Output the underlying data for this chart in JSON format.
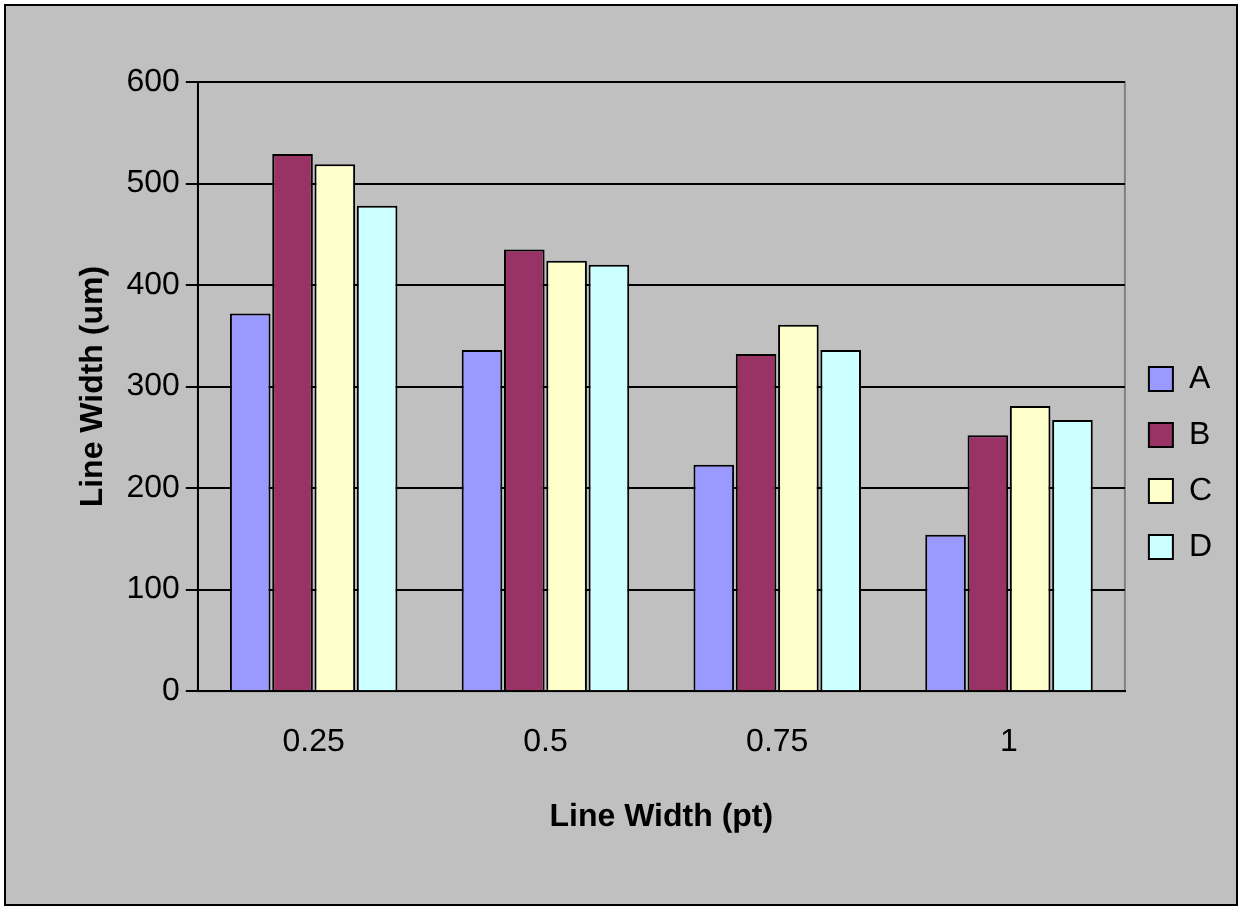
{
  "chart_data": {
    "type": "bar",
    "xlabel": "Line Width (pt)",
    "ylabel": "Line Width (um)",
    "categories": [
      "0.25",
      "0.5",
      "0.75",
      "1"
    ],
    "series": [
      {
        "name": "A",
        "color": "#9999ff",
        "values": [
          372,
          336,
          223,
          154
        ]
      },
      {
        "name": "B",
        "color": "#993366",
        "values": [
          529,
          435,
          332,
          252
        ]
      },
      {
        "name": "C",
        "color": "#ffffcc",
        "values": [
          519,
          424,
          361,
          281
        ]
      },
      {
        "name": "D",
        "color": "#ccffff",
        "values": [
          478,
          420,
          336,
          267
        ]
      }
    ],
    "ylim": [
      0,
      600
    ],
    "yticks": [
      0,
      100,
      200,
      300,
      400,
      500,
      600
    ],
    "grid": "y",
    "legend": "right"
  }
}
